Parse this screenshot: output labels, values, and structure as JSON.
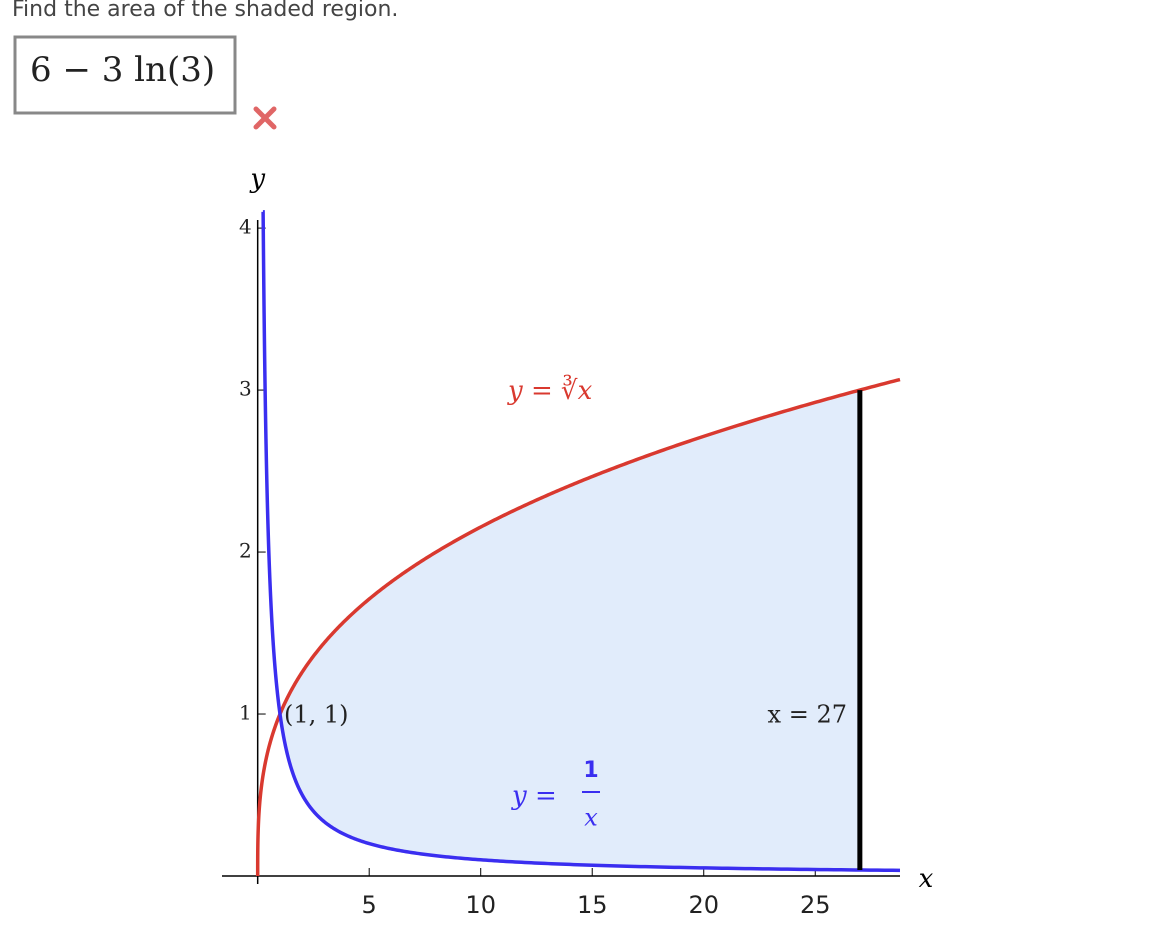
{
  "question": "Find the area of the shaded region.",
  "answer": "6 − 3 ln(3)",
  "figure": {
    "x_axis_label": "x",
    "y_axis_label": "y",
    "xlim": [
      -1.6,
      28.8
    ],
    "ylim": [
      0,
      4.05
    ],
    "xticks": [
      5,
      10,
      15,
      20,
      25
    ],
    "yticks": [
      1,
      2,
      3,
      4
    ],
    "line_x": 27,
    "cube_root_label": "y = ∛x",
    "reciprocal_label": {
      "lhs": "y =",
      "numerator": "1",
      "denominator": "x"
    },
    "point_label": "(1, 1)",
    "line_label": "x = 27"
  }
}
